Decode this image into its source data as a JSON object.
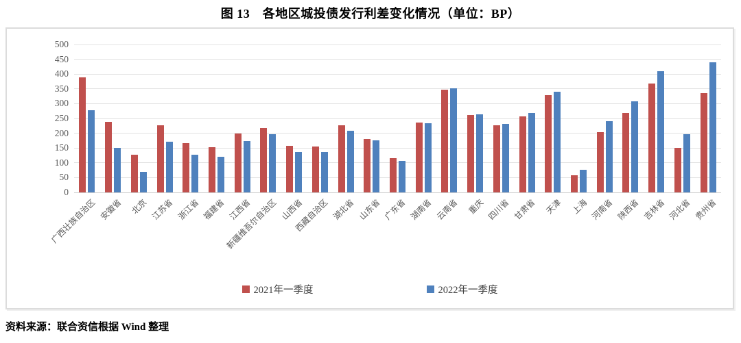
{
  "page": {
    "title": "图 13　各地区城投债发行利差变化情况（单位：BP）",
    "source": "资料来源：联合资信根据 Wind 整理"
  },
  "chart_data": {
    "type": "bar",
    "title": "图 13 各地区城投债发行利差变化情况（单位：BP）",
    "unit": "BP",
    "categories": [
      "广西壮族自治区",
      "安徽省",
      "北京",
      "江苏省",
      "浙江省",
      "福建省",
      "江西省",
      "新疆维吾尔自治区",
      "山西省",
      "西藏自治区",
      "湖北省",
      "山东省",
      "广东省",
      "湖南省",
      "云南省",
      "重庆",
      "四川省",
      "甘肃省",
      "天津",
      "上海",
      "河南省",
      "陕西省",
      "吉林省",
      "河北省",
      "贵州省"
    ],
    "series": [
      {
        "name": "2021年一季度",
        "color": "#C0504D",
        "values": [
          388,
          239,
          127,
          227,
          166,
          152,
          198,
          218,
          157,
          155,
          226,
          181,
          115,
          237,
          348,
          261,
          226,
          258,
          328,
          57,
          204,
          268,
          367,
          150,
          335
        ]
      },
      {
        "name": "2022年一季度",
        "color": "#4F81BD",
        "values": [
          277,
          150,
          70,
          171,
          127,
          120,
          173,
          196,
          136,
          137,
          208,
          176,
          107,
          234,
          351,
          264,
          231,
          269,
          341,
          77,
          241,
          309,
          409,
          196,
          441
        ]
      }
    ],
    "ylim": [
      0,
      500
    ],
    "ytick_step": 50,
    "grid": true,
    "legend_position": "bottom",
    "gridline_color": "#e2e2e2"
  }
}
